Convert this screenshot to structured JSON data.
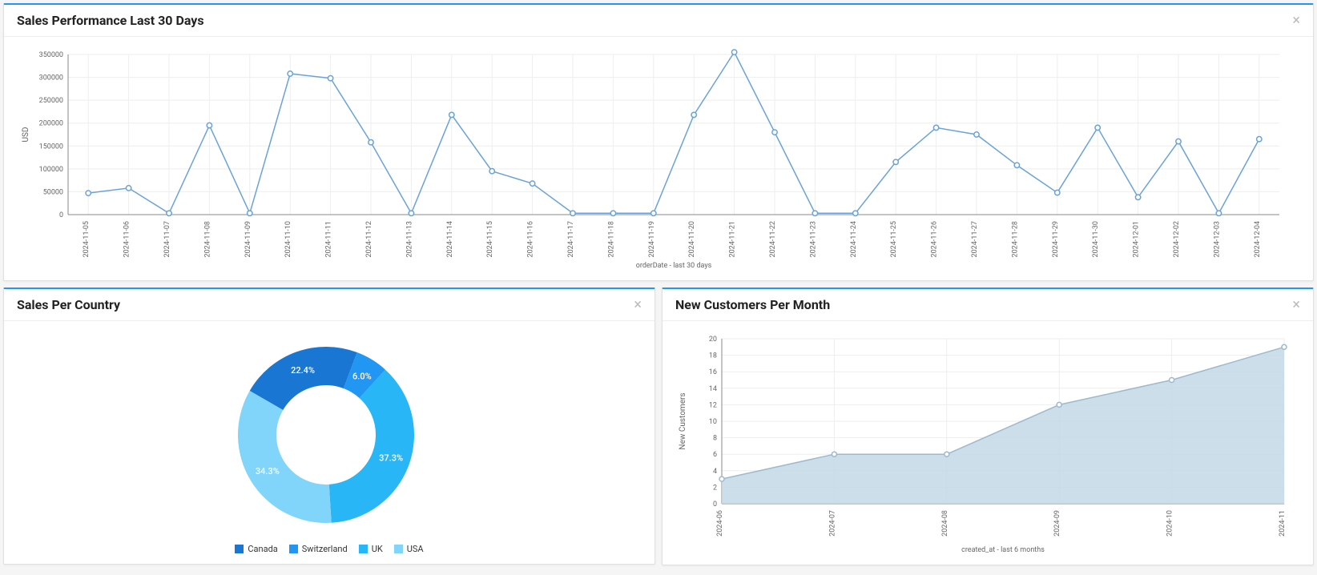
{
  "sales_perf": {
    "title": "Sales Performance Last 30 Days",
    "type": "line",
    "ylabel": "USD",
    "xlabel": "orderDate - last 30 days",
    "x": [
      "2024-11-05",
      "2024-11-06",
      "2024-11-07",
      "2024-11-08",
      "2024-11-09",
      "2024-11-10",
      "2024-11-11",
      "2024-11-12",
      "2024-11-13",
      "2024-11-14",
      "2024-11-15",
      "2024-11-16",
      "2024-11-17",
      "2024-11-18",
      "2024-11-19",
      "2024-11-20",
      "2024-11-21",
      "2024-11-22",
      "2024-11-23",
      "2024-11-24",
      "2024-11-25",
      "2024-11-26",
      "2024-11-27",
      "2024-11-28",
      "2024-11-29",
      "2024-11-30",
      "2024-12-01",
      "2024-12-02",
      "2024-12-03",
      "2024-12-04"
    ],
    "y": [
      47000,
      58000,
      3000,
      195000,
      3000,
      308000,
      298000,
      158000,
      3000,
      218000,
      95000,
      68000,
      3000,
      3000,
      3000,
      218000,
      355000,
      180000,
      3000,
      3000,
      115000,
      190000,
      175000,
      108000,
      48000,
      190000,
      38000,
      160000,
      3000,
      165000
    ],
    "yticks": [
      0,
      50000,
      100000,
      150000,
      200000,
      250000,
      300000,
      350000
    ],
    "line_color": "#6aa3d8",
    "marker_fill": "#ffffff",
    "grid_color": "#eeeeee",
    "axis_color": "#888888"
  },
  "sales_country": {
    "title": "Sales Per Country",
    "type": "donut",
    "slices": [
      {
        "label": "Canada",
        "pct": 22.4,
        "color": "#1976d2"
      },
      {
        "label": "Switzerland",
        "pct": 6.0,
        "color": "#2196f3"
      },
      {
        "label": "UK",
        "pct": 37.3,
        "color": "#29b6f6"
      },
      {
        "label": "USA",
        "pct": 34.3,
        "color": "#81d4fa"
      }
    ],
    "legend": [
      "Canada",
      "Switzerland",
      "UK",
      "USA"
    ]
  },
  "new_customers": {
    "title": "New Customers Per Month",
    "type": "area",
    "ylabel": "New Customers",
    "xlabel": "created_at - last 6 months",
    "x": [
      "2024-06",
      "2024-07",
      "2024-08",
      "2024-09",
      "2024-10",
      "2024-11"
    ],
    "y": [
      3,
      6,
      6,
      12,
      15,
      19
    ],
    "yticks": [
      0,
      2,
      4,
      6,
      8,
      10,
      12,
      14,
      16,
      18,
      20
    ],
    "line_color": "#9fb9cc",
    "fill_color": "#c3d8e6",
    "marker_fill": "#ffffff",
    "grid_color": "#eeeeee",
    "axis_color": "#888888"
  }
}
